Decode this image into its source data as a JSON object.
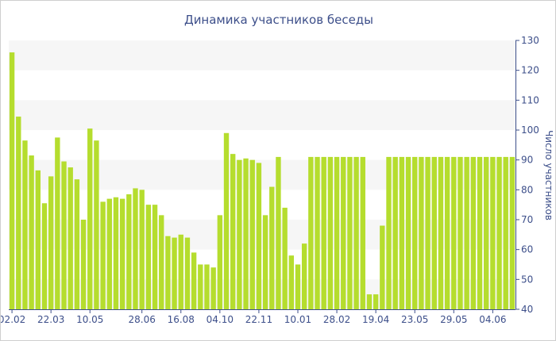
{
  "chart_data": {
    "type": "bar",
    "title": "Динамика участников беседы",
    "xlabel": "",
    "ylabel": "Число участников",
    "ylim": [
      40,
      130
    ],
    "yticks": [
      40,
      50,
      60,
      70,
      80,
      90,
      100,
      110,
      120,
      130
    ],
    "y_axis_side": "right",
    "grid": "alternating horizontal bands",
    "legend": "none",
    "bar_color": "#b5dd2e",
    "band_color": "#f6f6f6",
    "text_color": "#3d4f8a",
    "x_tick_labels": [
      "02.02",
      "22.03",
      "10.05",
      "28.06",
      "16.08",
      "04.10",
      "22.11",
      "10.01",
      "28.02",
      "19.04",
      "23.05",
      "29.05",
      "04.06"
    ],
    "x_tick_positions": [
      0,
      6,
      12,
      20,
      26,
      32,
      38,
      44,
      50,
      56,
      62,
      68,
      74
    ],
    "values": [
      126,
      104.5,
      96.5,
      91.5,
      86.5,
      75.5,
      84.5,
      97.5,
      89.5,
      87.5,
      83.5,
      70,
      100.5,
      96.5,
      76,
      77,
      77.5,
      77,
      78.5,
      80.5,
      80,
      75,
      75,
      71.5,
      64.5,
      64,
      65,
      64,
      59,
      55,
      55,
      54,
      71.5,
      99,
      92,
      90,
      90.5,
      90,
      89,
      71.5,
      81,
      91,
      74,
      58,
      55,
      62,
      91,
      91,
      91,
      91,
      91,
      91,
      91,
      91,
      91,
      45,
      45,
      68,
      91,
      91,
      91,
      91,
      91,
      91,
      91,
      91,
      91,
      91,
      91,
      91,
      91,
      91,
      91,
      91,
      91,
      91,
      91,
      91
    ]
  }
}
